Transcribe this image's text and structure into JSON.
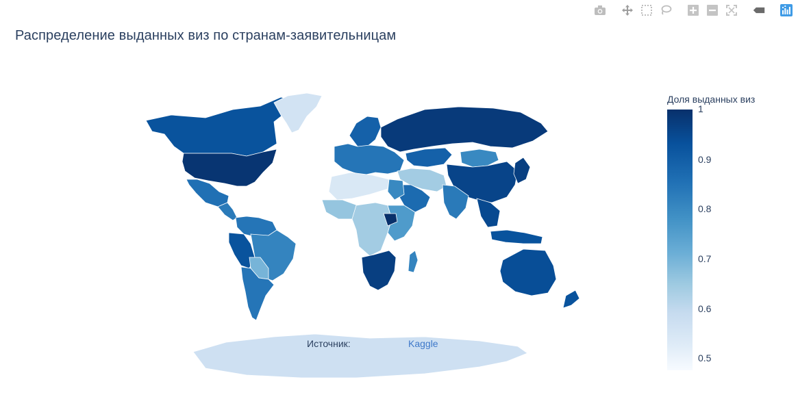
{
  "title": "Распределение выданных виз по странам-заявительницам",
  "modebar": {
    "buttons": [
      {
        "name": "camera-icon",
        "title": "Download plot as a png"
      },
      {
        "name": "pan-icon",
        "title": "Pan"
      },
      {
        "name": "box-select-icon",
        "title": "Box Select"
      },
      {
        "name": "lasso-select-icon",
        "title": "Lasso Select"
      },
      {
        "name": "zoom-in-icon",
        "title": "Zoom in"
      },
      {
        "name": "zoom-out-icon",
        "title": "Zoom out"
      },
      {
        "name": "reset-view-icon",
        "title": "Reset view"
      },
      {
        "name": "hover-compare-icon",
        "title": "Show closest data on hover"
      },
      {
        "name": "plotly-logo-icon",
        "title": "Produced with Plotly"
      }
    ]
  },
  "colorbar": {
    "title": "Доля выданных виз",
    "ticks": [
      "1",
      "0.9",
      "0.8",
      "0.7",
      "0.6",
      "0.5"
    ],
    "range": [
      0.47,
      1.0
    ],
    "colorscale": [
      "#f7fbff",
      "#deebf7",
      "#c6dbef",
      "#9ecae1",
      "#6baed6",
      "#4292c6",
      "#2171b5",
      "#08519c",
      "#08306b"
    ]
  },
  "source": {
    "label": "Источник:",
    "link_text": "Kaggle"
  },
  "chart_data": {
    "type": "choropleth",
    "colorbar_title": "Доля выданных виз",
    "zmin": 0.47,
    "zmax": 1.0,
    "regions": [
      {
        "name": "Canada",
        "value": 0.93
      },
      {
        "name": "USA",
        "value": 0.99
      },
      {
        "name": "Mexico",
        "value": 0.87
      },
      {
        "name": "Central America",
        "value": 0.85
      },
      {
        "name": "Colombia / Venezuela",
        "value": 0.86
      },
      {
        "name": "Peru / Ecuador",
        "value": 0.93
      },
      {
        "name": "Brazil",
        "value": 0.83
      },
      {
        "name": "Bolivia / Paraguay",
        "value": 0.72
      },
      {
        "name": "Argentina / Chile",
        "value": 0.86
      },
      {
        "name": "Greenland",
        "value": 0.57
      },
      {
        "name": "Scandinavia",
        "value": 0.9
      },
      {
        "name": "Europe",
        "value": 0.86
      },
      {
        "name": "Russia",
        "value": 0.98
      },
      {
        "name": "Kazakhstan",
        "value": 0.9
      },
      {
        "name": "Mongolia",
        "value": 0.82
      },
      {
        "name": "China",
        "value": 0.96
      },
      {
        "name": "Middle East",
        "value": 0.66
      },
      {
        "name": "Arabian Peninsula",
        "value": 0.88
      },
      {
        "name": "India",
        "value": 0.85
      },
      {
        "name": "Southeast Asia",
        "value": 0.95
      },
      {
        "name": "Japan / Korea",
        "value": 0.97
      },
      {
        "name": "Indonesia",
        "value": 0.93
      },
      {
        "name": "Australia",
        "value": 0.94
      },
      {
        "name": "New Zealand",
        "value": 0.93
      },
      {
        "name": "North Africa (Sahara)",
        "value": 0.55
      },
      {
        "name": "Egypt",
        "value": 0.82
      },
      {
        "name": "West Africa",
        "value": 0.68
      },
      {
        "name": "Central Africa",
        "value": 0.66
      },
      {
        "name": "East Africa",
        "value": 0.78
      },
      {
        "name": "South Sudan",
        "value": 1.0
      },
      {
        "name": "Southern Africa",
        "value": 0.97
      },
      {
        "name": "Madagascar",
        "value": 0.83
      },
      {
        "name": "Antarctica",
        "value": 0.58
      }
    ]
  }
}
